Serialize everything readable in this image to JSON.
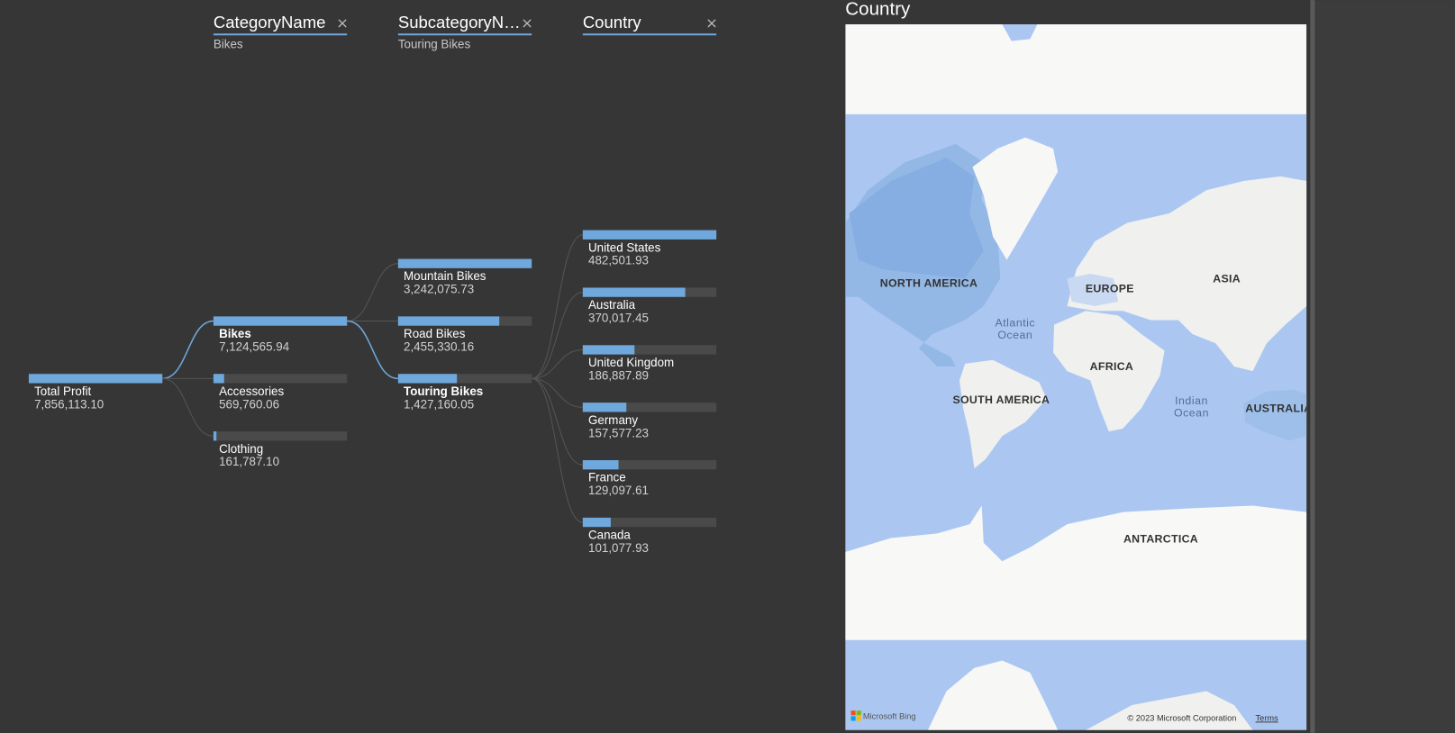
{
  "decomposition_tree": {
    "color": "#6fa8dc",
    "track_color": "#4a4a4a",
    "headers": [
      {
        "title": "CategoryName",
        "selection": "Bikes"
      },
      {
        "title": "SubcategoryN…",
        "selection": "Touring Bikes"
      },
      {
        "title": "Country"
      }
    ],
    "root": {
      "label": "Total Profit",
      "value": 7856113.1,
      "value_label": "7,856,113.10"
    },
    "levels": [
      [
        {
          "label": "Bikes",
          "value": 7124565.94,
          "value_label": "7,124,565.94",
          "selected": true
        },
        {
          "label": "Accessories",
          "value": 569760.06,
          "value_label": "569,760.06"
        },
        {
          "label": "Clothing",
          "value": 161787.1,
          "value_label": "161,787.10"
        }
      ],
      [
        {
          "label": "Mountain Bikes",
          "value": 3242075.73,
          "value_label": "3,242,075.73"
        },
        {
          "label": "Road Bikes",
          "value": 2455330.16,
          "value_label": "2,455,330.16"
        },
        {
          "label": "Touring Bikes",
          "value": 1427160.05,
          "value_label": "1,427,160.05",
          "selected": true
        }
      ],
      [
        {
          "label": "United States",
          "value": 482501.93,
          "value_label": "482,501.93"
        },
        {
          "label": "Australia",
          "value": 370017.45,
          "value_label": "370,017.45"
        },
        {
          "label": "United Kingdom",
          "value": 186887.89,
          "value_label": "186,887.89"
        },
        {
          "label": "Germany",
          "value": 157577.23,
          "value_label": "157,577.23"
        },
        {
          "label": "France",
          "value": 129097.61,
          "value_label": "129,097.61"
        },
        {
          "label": "Canada",
          "value": 101077.93,
          "value_label": "101,077.93"
        }
      ]
    ]
  },
  "map": {
    "title": "Country",
    "labels": [
      {
        "lines": [
          "NORTH AMERICA"
        ]
      },
      {
        "lines": [
          "EUROPE"
        ]
      },
      {
        "lines": [
          "ASIA"
        ]
      },
      {
        "lines": [
          "Atlantic",
          "Ocean"
        ]
      },
      {
        "lines": [
          "AFRICA"
        ]
      },
      {
        "lines": [
          "SOUTH AMERICA"
        ]
      },
      {
        "lines": [
          "Indian",
          "Ocean"
        ]
      },
      {
        "lines": [
          "AUSTRALIA"
        ]
      },
      {
        "lines": [
          "ANTARCTICA"
        ]
      }
    ],
    "provider": "Microsoft Bing",
    "copyright": "© 2023 Microsoft Corporation",
    "terms": "Terms"
  }
}
